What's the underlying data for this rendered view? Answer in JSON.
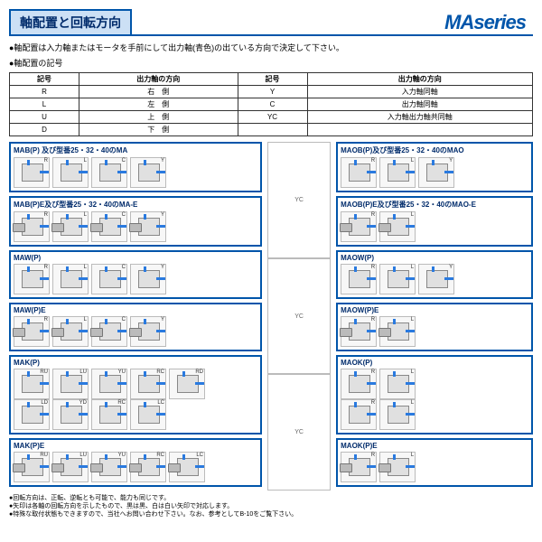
{
  "header": {
    "title": "軸配置と回転方向",
    "brand": "MAseries"
  },
  "intro": {
    "line1": "●軸配置は入力軸またはモータを手前にして出力軸(青色)の出ている方向で決定して下さい。",
    "line2": "●軸配置の記号"
  },
  "code_table": {
    "headers": [
      "記号",
      "出力軸の方向",
      "記号",
      "出力軸の方向"
    ],
    "rows": [
      [
        "R",
        "右　側",
        "Y",
        "入力軸同軸"
      ],
      [
        "L",
        "左　側",
        "C",
        "出力軸同軸"
      ],
      [
        "U",
        "上　側",
        "YC",
        "入力軸出力軸共同軸"
      ],
      [
        "D",
        "下　側",
        "",
        ""
      ]
    ]
  },
  "sections": {
    "left": [
      {
        "title": "MAB(P) 及び型番25・32・40のMA",
        "rows": [
          [
            {
              "tag": "R"
            },
            {
              "tag": "L"
            },
            {
              "tag": "C"
            },
            {
              "tag": "Y"
            }
          ]
        ]
      },
      {
        "title": "MAB(P)E及び型番25・32・40のMA-E",
        "rows": [
          [
            {
              "tag": "R",
              "motor": true
            },
            {
              "tag": "L",
              "motor": true
            },
            {
              "tag": "C",
              "motor": true
            },
            {
              "tag": "Y",
              "motor": true
            }
          ]
        ]
      },
      {
        "title": "MAW(P)",
        "rows": [
          [
            {
              "tag": "R"
            },
            {
              "tag": "L"
            },
            {
              "tag": "C"
            },
            {
              "tag": "Y"
            }
          ]
        ]
      },
      {
        "title": "MAW(P)E",
        "rows": [
          [
            {
              "tag": "R",
              "motor": true
            },
            {
              "tag": "L",
              "motor": true
            },
            {
              "tag": "C",
              "motor": true
            },
            {
              "tag": "Y",
              "motor": true
            }
          ]
        ]
      },
      {
        "title": "MAK(P)",
        "rows": [
          [
            {
              "tag": "RU"
            },
            {
              "tag": "LU"
            },
            {
              "tag": "YU"
            },
            {
              "tag": "RC"
            },
            {
              "tag": "RD"
            }
          ],
          [
            {
              "tag": "LD"
            },
            {
              "tag": "YD"
            },
            {
              "tag": "RC"
            },
            {
              "tag": "LC"
            }
          ]
        ]
      },
      {
        "title": "MAK(P)E",
        "rows": [
          [
            {
              "tag": "RU",
              "motor": true
            },
            {
              "tag": "LU",
              "motor": true
            },
            {
              "tag": "YU",
              "motor": true
            },
            {
              "tag": "RC",
              "motor": true
            },
            {
              "tag": "LC",
              "motor": true
            }
          ]
        ]
      }
    ],
    "right": [
      {
        "title": "MAOB(P)及び型番25・32・40のMAO",
        "rows": [
          [
            {
              "tag": "R"
            },
            {
              "tag": "L"
            },
            {
              "tag": "Y"
            }
          ]
        ]
      },
      {
        "title": "MAOB(P)E及び型番25・32・40のMAO-E",
        "rows": [
          [
            {
              "tag": "R",
              "motor": true
            },
            {
              "tag": "L",
              "motor": true
            }
          ]
        ]
      },
      {
        "title": "MAOW(P)",
        "rows": [
          [
            {
              "tag": "R"
            },
            {
              "tag": "L"
            },
            {
              "tag": "Y"
            }
          ]
        ]
      },
      {
        "title": "MAOW(P)E",
        "rows": [
          [
            {
              "tag": "R",
              "motor": true
            },
            {
              "tag": "L",
              "motor": true
            }
          ]
        ]
      },
      {
        "title": "MAOK(P)",
        "rows": [
          [
            {
              "tag": "R"
            },
            {
              "tag": "L"
            }
          ],
          [
            {
              "tag": "R"
            },
            {
              "tag": "L"
            }
          ]
        ]
      },
      {
        "title": "MAOK(P)E",
        "rows": [
          [
            {
              "tag": "R",
              "motor": true
            },
            {
              "tag": "L",
              "motor": true
            }
          ]
        ]
      }
    ],
    "mid_labels": [
      "YC",
      "YC",
      "YC"
    ]
  },
  "footnotes": {
    "l1": "●回転方向は、正転、逆転とも可能で、能力も同じです。",
    "l2": "●矢印は各軸の回転方向を示したもので、黒は黒、白は白い矢印で対応します。",
    "l3": "●特殊な取付状態もできますので、当社へお問い合わせ下さい。なお、参考としてB-10をご覧下さい。"
  }
}
